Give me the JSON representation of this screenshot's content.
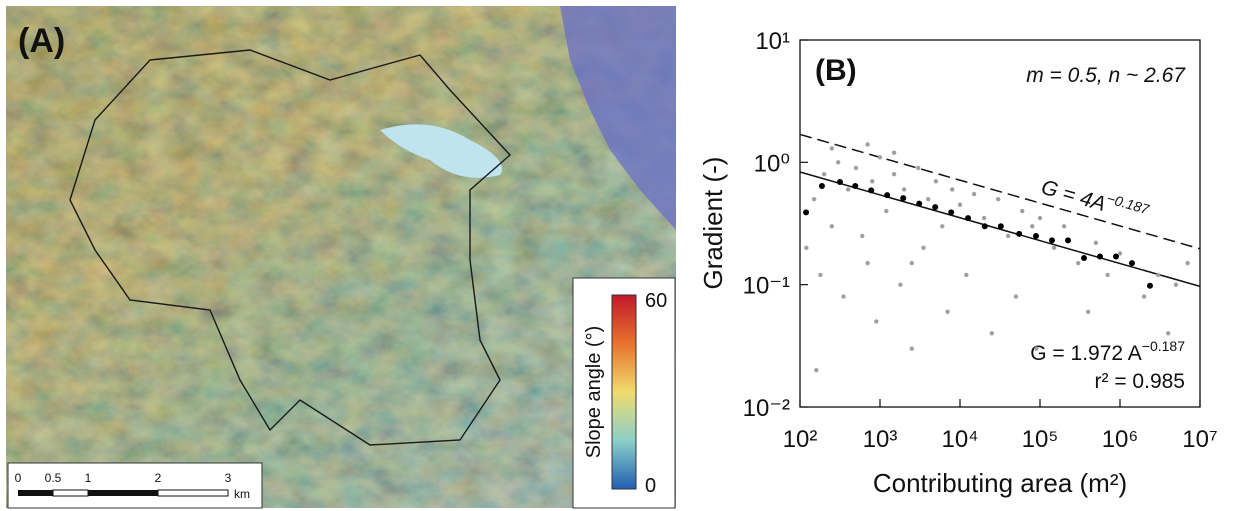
{
  "map": {
    "label": "(A)",
    "scale_bar": {
      "ticks": [
        "0",
        "0.5",
        "1",
        "2",
        "3"
      ],
      "unit": "km"
    },
    "legend": {
      "title": "Slope angle (°)",
      "max": 60,
      "min": 0
    }
  },
  "chart_data": {
    "type": "scatter",
    "panel_label": "(B)",
    "annotation": "m = 0.5, n ~ 2.67",
    "x_label": "Contributing area (m²)",
    "y_label": "Gradient (-)",
    "log_x": true,
    "log_y": true,
    "xlim": [
      100,
      10000000
    ],
    "ylim": [
      0.01,
      10
    ],
    "xticks": [
      {
        "value": 100,
        "label": "10²"
      },
      {
        "value": 1000,
        "label": "10³"
      },
      {
        "value": 10000,
        "label": "10⁴"
      },
      {
        "value": 100000,
        "label": "10⁵"
      },
      {
        "value": 1000000,
        "label": "10⁶"
      },
      {
        "value": 10000000,
        "label": "10⁷"
      }
    ],
    "yticks": [
      {
        "value": 0.01,
        "label": "10⁻²"
      },
      {
        "value": 0.1,
        "label": "10⁻¹"
      },
      {
        "value": 1,
        "label": "10⁰"
      },
      {
        "value": 10,
        "label": "10¹"
      }
    ],
    "series": [
      {
        "color": "#a0a0a0",
        "x": [
          150,
          200,
          250,
          300,
          400,
          500,
          600,
          800,
          1000,
          1200,
          1500,
          2000,
          2500,
          3000,
          4000,
          5000,
          6000,
          8000,
          10000,
          15000,
          20000,
          30000,
          40000,
          60000,
          80000,
          100000,
          150000,
          200000,
          300000,
          500000,
          700000,
          1000000,
          2000000,
          3000000,
          5000000,
          7000000,
          120,
          180,
          350,
          700,
          900,
          1800,
          3500,
          7000,
          12000,
          25000,
          50000,
          90000,
          400000,
          2500,
          250,
          700,
          1500,
          160,
          4000000
        ],
        "values": [
          0.5,
          0.8,
          0.3,
          1.0,
          0.6,
          0.9,
          0.25,
          0.7,
          1.1,
          0.4,
          0.8,
          0.6,
          0.15,
          0.9,
          0.5,
          0.7,
          0.3,
          0.6,
          0.45,
          0.55,
          0.35,
          0.5,
          0.25,
          0.4,
          0.3,
          0.35,
          0.2,
          0.3,
          0.15,
          0.22,
          0.12,
          0.18,
          0.08,
          0.12,
          0.1,
          0.15,
          0.2,
          0.12,
          0.08,
          0.15,
          0.05,
          0.1,
          0.2,
          0.06,
          0.12,
          0.04,
          0.08,
          0.03,
          0.06,
          0.03,
          1.3,
          1.4,
          1.2,
          0.02,
          0.04
        ]
      },
      {
        "color": "#000000",
        "x": [
          119,
          188,
          316,
          490,
          776,
          1230,
          1950,
          3090,
          4900,
          7760,
          12600,
          20400,
          32400,
          54900,
          89100,
          141000,
          224000,
          355000,
          562000,
          891000,
          1410000,
          2370000
        ],
        "values": [
          0.39,
          0.64,
          0.69,
          0.64,
          0.59,
          0.54,
          0.51,
          0.46,
          0.43,
          0.39,
          0.35,
          0.3,
          0.3,
          0.26,
          0.25,
          0.23,
          0.23,
          0.165,
          0.17,
          0.17,
          0.15,
          0.098
        ]
      }
    ],
    "fit_lines": [
      {
        "coefficient": 4,
        "exponent": -0.187,
        "dashed": true,
        "label": {
          "text": "G = 4A",
          "superscript": "−0.187"
        }
      },
      {
        "coefficient": 1.972,
        "exponent": -0.187,
        "dashed": false,
        "label": {
          "text": "G = 1.972 A",
          "superscript": "−0.187"
        }
      }
    ],
    "r_squared": "r² = 0.985"
  }
}
